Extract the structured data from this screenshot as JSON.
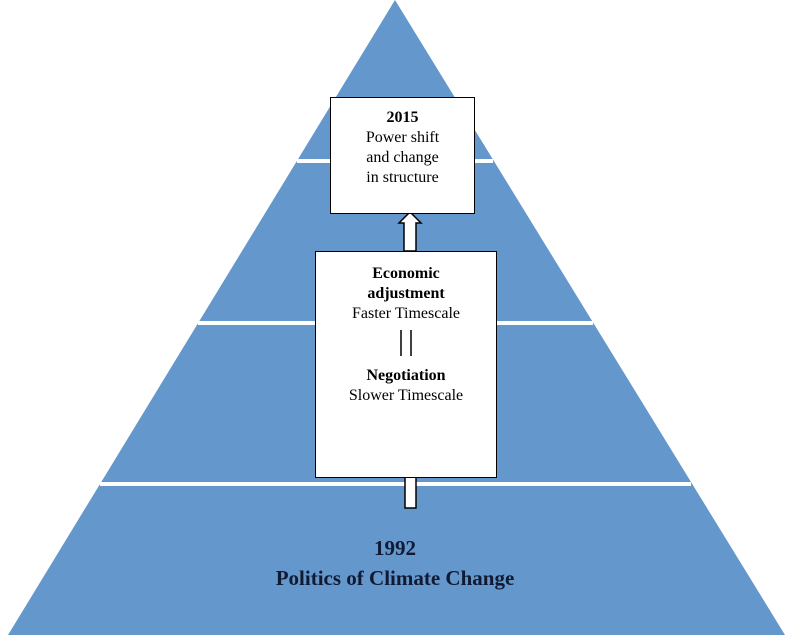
{
  "top_box": {
    "year": "2015",
    "lines": [
      "Power shift",
      "and change",
      "in structure"
    ]
  },
  "middle_box": {
    "upper_title": [
      "Economic",
      "adjustment"
    ],
    "upper_text": "Faster Timescale",
    "lower_title": "Negotiation",
    "lower_text": "Slower Timescale"
  },
  "base": {
    "year": "1992",
    "title": "Politics of Climate Change"
  }
}
